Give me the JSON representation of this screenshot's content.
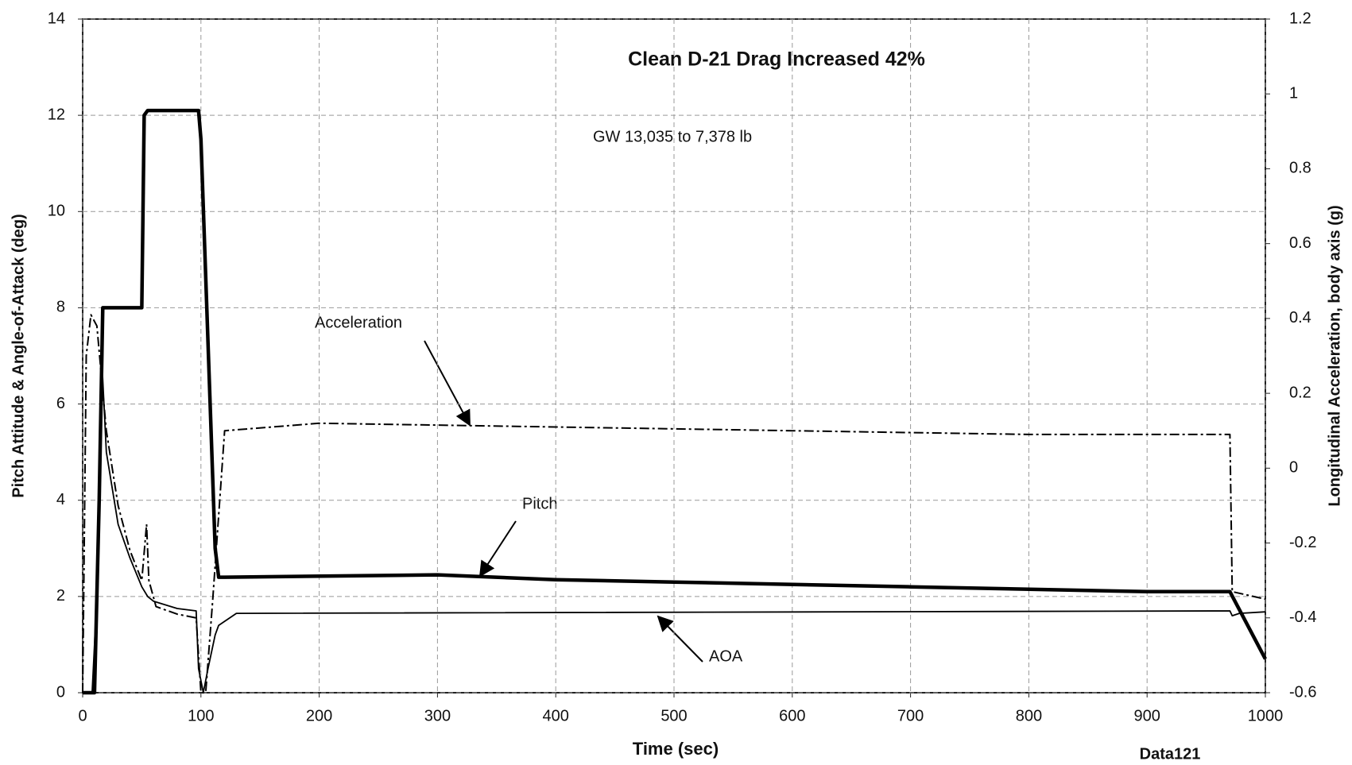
{
  "chart_data": {
    "type": "line",
    "title": "Clean D-21 Drag Increased 42%",
    "subtitle": "GW 13,035 to 7,378 lb",
    "xlabel": "Time (sec)",
    "ylabel": "Pitch Attitude & Angle-of-Attack (deg)",
    "y2label": "Longitudinal Acceleration, body axis (g)",
    "source": "Data121",
    "xlim": [
      0,
      1000
    ],
    "xticks": [
      0,
      100,
      200,
      300,
      400,
      500,
      600,
      700,
      800,
      900,
      1000
    ],
    "ylim": [
      0,
      14
    ],
    "yticks": [
      0,
      2,
      4,
      6,
      8,
      10,
      12,
      14
    ],
    "y2lim": [
      -0.6,
      1.2
    ],
    "y2ticks": [
      -0.6,
      -0.4,
      -0.2,
      0,
      0.2,
      0.4,
      0.6,
      0.8,
      1,
      1.2
    ],
    "grid": true,
    "series": [
      {
        "name": "Acceleration",
        "color": "#000000",
        "axis": "y2",
        "x": [
          0,
          3,
          7,
          12,
          20,
          30,
          40,
          50,
          54,
          56,
          62,
          80,
          96,
          100,
          104,
          110,
          120,
          200,
          400,
          600,
          800,
          970,
          972,
          1000
        ],
        "values": [
          -0.6,
          0.3,
          0.41,
          0.38,
          0.1,
          -0.1,
          -0.22,
          -0.3,
          -0.15,
          -0.3,
          -0.37,
          -0.39,
          -0.4,
          -0.6,
          -0.6,
          -0.35,
          0.1,
          0.12,
          0.11,
          0.1,
          0.09,
          0.09,
          -0.33,
          -0.35
        ]
      },
      {
        "name": "Pitch",
        "color": "#000000",
        "x": [
          0,
          10,
          14,
          17,
          50,
          52,
          55,
          98,
          100,
          112,
          115,
          120,
          300,
          400,
          500,
          700,
          900,
          970,
          1000
        ],
        "values": [
          0,
          0,
          4,
          8,
          8,
          12,
          12.1,
          12.1,
          11.5,
          3,
          2.4,
          2.4,
          2.45,
          2.35,
          2.3,
          2.2,
          2.1,
          2.1,
          0.7
        ]
      },
      {
        "name": "AOA",
        "color": "#000000",
        "x": [
          0,
          8,
          12,
          16,
          20,
          30,
          40,
          50,
          55,
          60,
          80,
          96,
          98,
          102,
          106,
          112,
          115,
          130,
          970,
          972,
          978,
          1000
        ],
        "values": [
          0,
          0,
          2,
          7,
          5,
          3.5,
          2.8,
          2.2,
          2.0,
          1.9,
          1.75,
          1.7,
          0.5,
          0,
          0.5,
          1.2,
          1.4,
          1.65,
          1.7,
          1.6,
          1.65,
          1.68
        ]
      }
    ]
  }
}
